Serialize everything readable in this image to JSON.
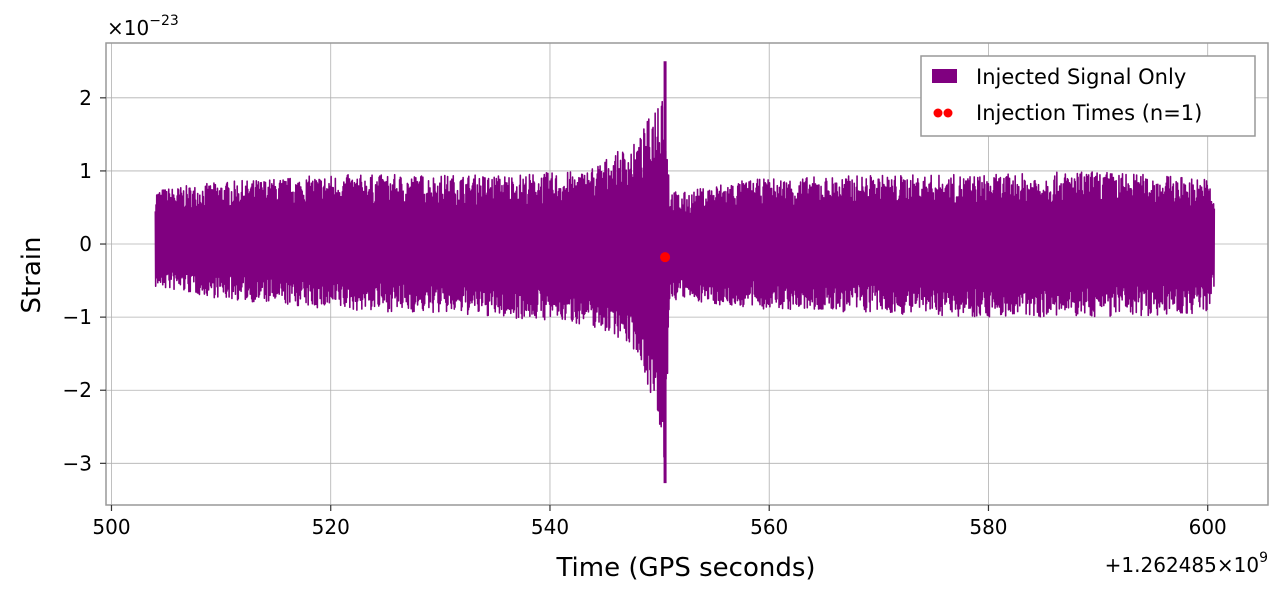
{
  "chart_data": {
    "type": "line",
    "xlabel": "Time (GPS seconds)",
    "ylabel": "Strain",
    "x_offset_label": "+1.262485×10",
    "x_offset_exponent": "9",
    "y_scale_label": "×10",
    "y_scale_exponent": "−23",
    "xlim": [
      499.5,
      605.5
    ],
    "ylim": [
      -3.57,
      2.75
    ],
    "x_ticks": [
      500,
      520,
      540,
      560,
      580,
      600
    ],
    "x_tick_labels": [
      "500",
      "520",
      "540",
      "560",
      "580",
      "600"
    ],
    "y_ticks": [
      -3,
      -2,
      -1,
      0,
      1,
      2
    ],
    "y_tick_labels": [
      "−3",
      "−2",
      "−1",
      "0",
      "1",
      "2"
    ],
    "grid": true,
    "legend_position": "top-right",
    "series": [
      {
        "name": "Injected Signal Only",
        "color": "#800080",
        "kind": "line",
        "x_range": [
          504.0,
          600.6
        ],
        "envelope": {
          "x": [
            504,
            510,
            520,
            530,
            535,
            540,
            543,
            546,
            548,
            549.5,
            550.2,
            550.5,
            550.9,
            552,
            556,
            560,
            570,
            580,
            590,
            600,
            600.6
          ],
          "upper": [
            0.75,
            0.85,
            0.95,
            0.95,
            0.95,
            0.98,
            1.0,
            1.25,
            1.4,
            1.9,
            2.4,
            2.5,
            0.75,
            0.7,
            0.85,
            0.9,
            0.95,
            0.95,
            1.0,
            0.9,
            0.65
          ],
          "lower": [
            -0.6,
            -0.75,
            -0.9,
            -0.95,
            -1.0,
            -1.05,
            -1.1,
            -1.25,
            -1.5,
            -2.2,
            -3.1,
            -3.27,
            -0.8,
            -0.75,
            -0.85,
            -0.9,
            -0.95,
            -1.0,
            -1.0,
            -0.95,
            -0.6
          ]
        }
      },
      {
        "name": "Injection Times (n=1)",
        "color": "#ff0000",
        "kind": "scatter",
        "points": [
          {
            "x": 550.5,
            "y": -0.18
          }
        ]
      }
    ]
  }
}
